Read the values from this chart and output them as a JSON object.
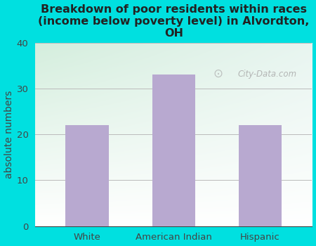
{
  "title": "Breakdown of poor residents within races\n(income below poverty level) in Alvordton,\nOH",
  "categories": [
    "White",
    "American Indian",
    "Hispanic"
  ],
  "values": [
    22,
    33,
    22
  ],
  "bar_color": "#b8a9d0",
  "ylabel": "absolute numbers",
  "ylim": [
    0,
    40
  ],
  "yticks": [
    0,
    10,
    20,
    30,
    40
  ],
  "background_color": "#00e0e0",
  "plot_bg_topleft": "#d4eedd",
  "plot_bg_topright": "#e8f5f0",
  "plot_bg_bottom": "#ffffff",
  "title_color": "#222222",
  "axis_color": "#444444",
  "grid_color": "#bbbbbb",
  "watermark": "City-Data.com",
  "title_fontsize": 11.5,
  "ylabel_fontsize": 10,
  "tick_fontsize": 9.5,
  "bar_width": 0.5
}
